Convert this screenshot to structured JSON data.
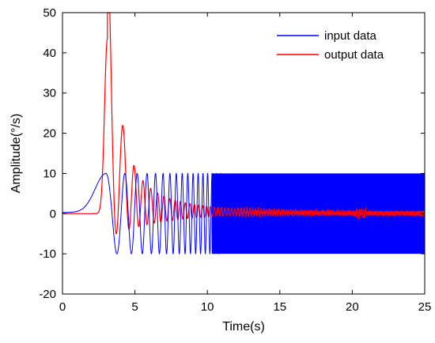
{
  "chart_data": {
    "type": "line",
    "title": "",
    "xlabel": "Time(s)",
    "ylabel": "Amplitude(°/s)",
    "xlim": [
      0,
      25
    ],
    "ylim": [
      -20,
      50
    ],
    "xticks": [
      0,
      5,
      10,
      15,
      20,
      25
    ],
    "yticks": [
      -20,
      -10,
      0,
      10,
      20,
      30,
      40,
      50
    ],
    "grid": false,
    "legend_position": "top-right",
    "series": [
      {
        "name": "input data",
        "color": "#0000ff",
        "description_points": [
          {
            "x": 0,
            "y": 0
          },
          {
            "x": 1.5,
            "y": 2
          },
          {
            "x": 2.3,
            "y": 6
          },
          {
            "x": 3.0,
            "y": 10
          },
          {
            "x": 3.5,
            "y": 5
          },
          {
            "x": 4.0,
            "y": -10
          },
          {
            "x": 4.5,
            "y": 10
          },
          {
            "x": 5.0,
            "y": -10
          },
          {
            "x": 10,
            "y": 10
          },
          {
            "x": 25,
            "y": -10
          }
        ]
      },
      {
        "name": "output data",
        "color": "#ff0000",
        "description_points": [
          {
            "x": 0,
            "y": 0
          },
          {
            "x": 2.0,
            "y": 0.5
          },
          {
            "x": 2.6,
            "y": 15
          },
          {
            "x": 3.1,
            "y": 43.5
          },
          {
            "x": 3.6,
            "y": 18
          },
          {
            "x": 4.0,
            "y": -4.5
          },
          {
            "x": 4.5,
            "y": 23.5
          },
          {
            "x": 4.9,
            "y": -3
          },
          {
            "x": 5.2,
            "y": 16
          },
          {
            "x": 5.6,
            "y": -2
          },
          {
            "x": 5.8,
            "y": 12
          },
          {
            "x": 8,
            "y": 5
          },
          {
            "x": 12,
            "y": 1.5
          },
          {
            "x": 20.5,
            "y": 0
          },
          {
            "x": 25,
            "y": 0
          }
        ]
      }
    ]
  }
}
